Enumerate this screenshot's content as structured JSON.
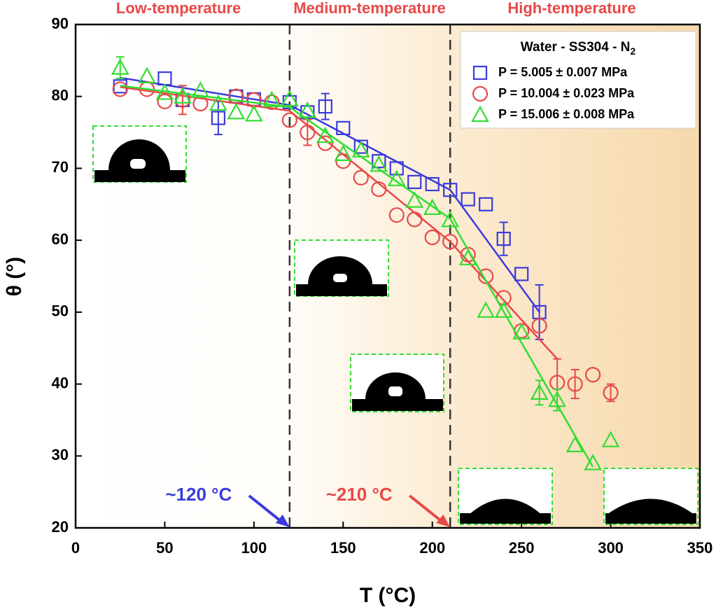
{
  "chart_data": {
    "type": "scatter",
    "xlabel": "T (°C)",
    "ylabel": "θ (°)",
    "xlim": [
      0,
      350
    ],
    "ylim": [
      20,
      90
    ],
    "xticks": [
      0,
      50,
      100,
      150,
      200,
      250,
      300,
      350
    ],
    "yticks": [
      20,
      30,
      40,
      50,
      60,
      70,
      80,
      90
    ],
    "regions": [
      "Low-temperature",
      "Medium-temperature",
      "High-temperature"
    ],
    "vlines": [
      120,
      210
    ],
    "annotations": [
      {
        "text": "~120 °C",
        "x": 120,
        "color": "#3b3bdd"
      },
      {
        "text": "~210 °C",
        "x": 210,
        "color": "#e84848"
      }
    ],
    "legend_title": "Water - SS304 - N",
    "legend_title_sub": "2",
    "series": [
      {
        "name": "P =   5.005 ± 0.007 MPa",
        "color": "#3b3bdd",
        "marker": "square",
        "x": [
          25,
          50,
          60,
          80,
          90,
          100,
          120,
          130,
          140,
          150,
          160,
          170,
          180,
          190,
          200,
          210,
          220,
          230,
          240,
          250,
          260
        ],
        "values": [
          81.4,
          82.5,
          79.5,
          77,
          80,
          79.6,
          79.2,
          77.8,
          78.6,
          75.6,
          73,
          71,
          70,
          68.1,
          67.8,
          67,
          65.7,
          65,
          60.2,
          55.3,
          50
        ],
        "errors": [
          null,
          null,
          null,
          2.3,
          null,
          null,
          null,
          null,
          1.8,
          null,
          null,
          null,
          null,
          null,
          null,
          null,
          null,
          null,
          2.3,
          null,
          3.8
        ],
        "fit": {
          "x": [
            25,
            120,
            210,
            260
          ],
          "values": [
            82.6,
            78.8,
            67,
            50
          ]
        }
      },
      {
        "name": "P = 10.004 ± 0.023 MPa",
        "color": "#e84848",
        "marker": "circle",
        "x": [
          25,
          40,
          50,
          60,
          70,
          90,
          100,
          110,
          120,
          130,
          140,
          150,
          160,
          170,
          180,
          190,
          200,
          210,
          220,
          230,
          240,
          250,
          260,
          270,
          280,
          290,
          300
        ],
        "values": [
          81,
          81,
          79.3,
          79.5,
          79,
          80,
          79.5,
          79.2,
          76.7,
          75,
          73.5,
          71,
          68.7,
          67.1,
          63.5,
          62.9,
          60.4,
          59.8,
          58,
          55,
          52,
          47.4,
          48.1,
          40.2,
          40,
          41.3,
          38.8
        ],
        "errors": [
          null,
          null,
          null,
          2,
          null,
          null,
          null,
          null,
          null,
          1.8,
          null,
          null,
          null,
          null,
          null,
          null,
          null,
          null,
          null,
          null,
          null,
          null,
          null,
          3.3,
          2,
          null,
          1.2
        ],
        "fit": {
          "x": [
            25,
            120,
            210,
            270
          ],
          "values": [
            81.3,
            78,
            59.8,
            43.5
          ]
        }
      },
      {
        "name": "P = 15.006 ± 0.008 MPa",
        "color": "#33dd33",
        "marker": "triangle",
        "x": [
          25,
          40,
          50,
          60,
          70,
          80,
          90,
          100,
          110,
          120,
          130,
          140,
          150,
          160,
          170,
          180,
          190,
          200,
          210,
          220,
          230,
          240,
          250,
          260,
          270,
          280,
          290,
          300
        ],
        "values": [
          84,
          82.8,
          80.5,
          80,
          80.8,
          79,
          77.8,
          77.5,
          79.5,
          79.6,
          78,
          74.5,
          72,
          72.5,
          70.5,
          68.5,
          65.5,
          64.5,
          62.8,
          57.5,
          50.2,
          50.2,
          47.2,
          38.8,
          37.8,
          31.5,
          29,
          32.2
        ],
        "errors": [
          1.5,
          null,
          null,
          null,
          null,
          null,
          null,
          null,
          null,
          null,
          null,
          null,
          null,
          null,
          null,
          null,
          null,
          null,
          null,
          null,
          null,
          null,
          null,
          1.7,
          1.5,
          null,
          null,
          null
        ],
        "fit": {
          "x": [
            25,
            120,
            210,
            290
          ],
          "values": [
            81.5,
            78.5,
            63,
            28.5
          ]
        }
      }
    ]
  }
}
